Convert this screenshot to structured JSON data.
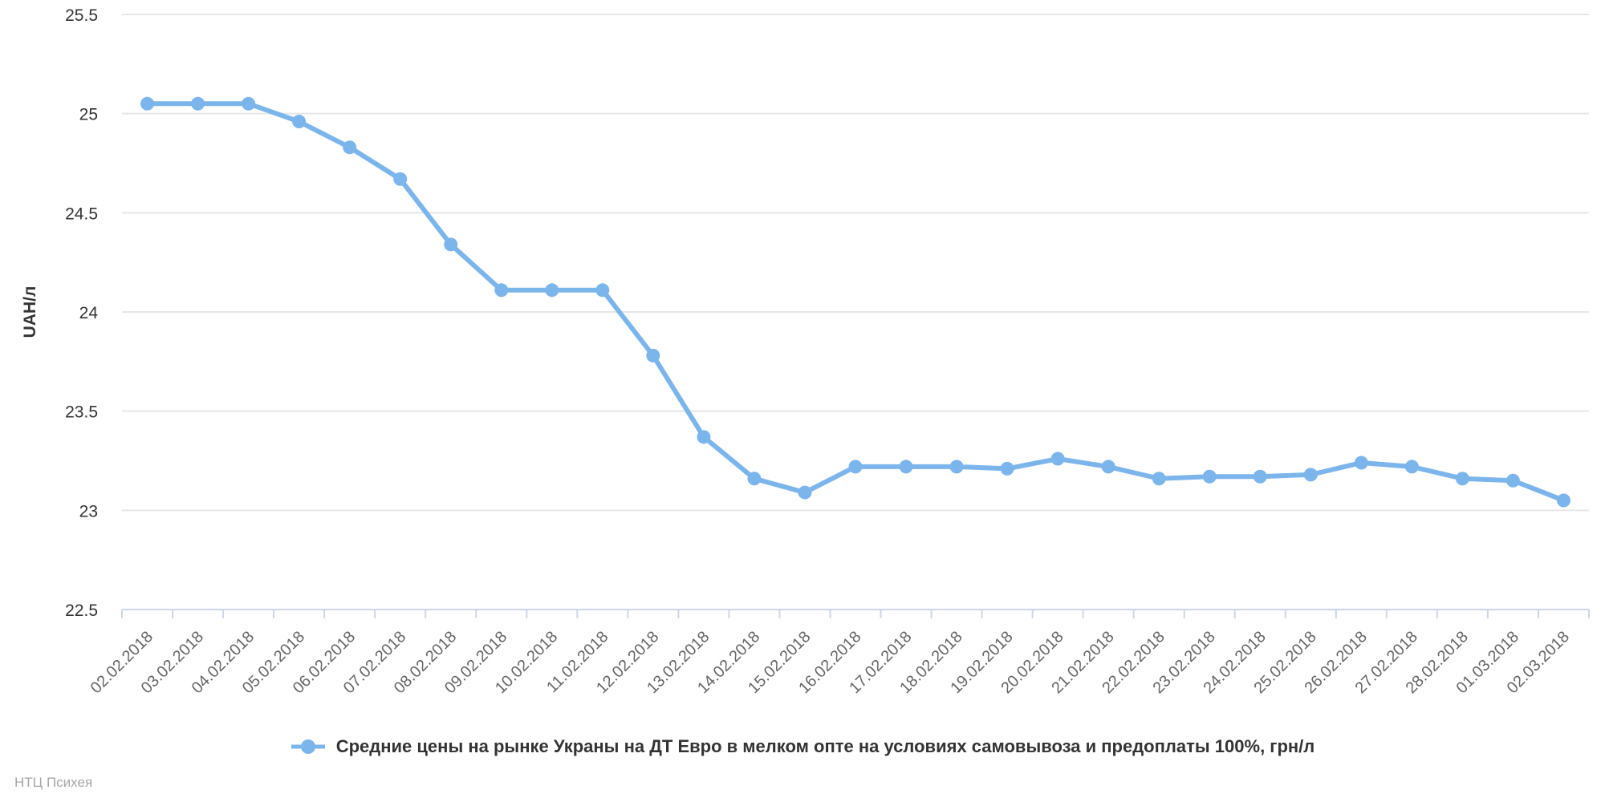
{
  "chart": {
    "y_axis": {
      "title": "UAH/л",
      "tick_labels": [
        "25.5",
        "25",
        "24.5",
        "24",
        "23.5",
        "23",
        "22.5"
      ],
      "min": 22.5,
      "max": 25.5,
      "tick_interval": 0.5
    },
    "x_axis": {
      "label_rotation": -45
    },
    "colors": {
      "series": "#7cb5ec",
      "grid": "#e6e6e6",
      "axis_line": "#ccd6eb",
      "y_label": "#333333",
      "x_label": "#666666",
      "legend_text": "#333333",
      "credits": "#a6a6a6"
    }
  },
  "legend": {
    "label": "Средние цены на рынке Украны на ДТ Евро в мелком опте на условиях самовывоза и предоплаты 100%, грн/л"
  },
  "credits": {
    "text": "НТЦ Психея"
  },
  "chart_data": {
    "type": "line",
    "title": "",
    "xlabel": "",
    "ylabel": "UAH/л",
    "ylim": [
      22.5,
      25.5
    ],
    "grid": true,
    "legend_position": "bottom",
    "categories": [
      "02.02.2018",
      "03.02.2018",
      "04.02.2018",
      "05.02.2018",
      "06.02.2018",
      "07.02.2018",
      "08.02.2018",
      "09.02.2018",
      "10.02.2018",
      "11.02.2018",
      "12.02.2018",
      "13.02.2018",
      "14.02.2018",
      "15.02.2018",
      "16.02.2018",
      "17.02.2018",
      "18.02.2018",
      "19.02.2018",
      "20.02.2018",
      "21.02.2018",
      "22.02.2018",
      "23.02.2018",
      "24.02.2018",
      "25.02.2018",
      "26.02.2018",
      "27.02.2018",
      "28.02.2018",
      "01.03.2018",
      "02.03.2018"
    ],
    "series": [
      {
        "name": "Средние цены на рынке Украны на ДТ Евро в мелком опте на условиях самовывоза и предоплаты 100%, грн/л",
        "values": [
          25.05,
          25.05,
          25.05,
          24.96,
          24.83,
          24.67,
          24.34,
          24.11,
          24.11,
          24.11,
          23.78,
          23.37,
          23.16,
          23.09,
          23.22,
          23.22,
          23.22,
          23.21,
          23.26,
          23.22,
          23.16,
          23.17,
          23.17,
          23.18,
          23.24,
          23.22,
          23.16,
          23.15,
          23.05
        ]
      }
    ]
  }
}
